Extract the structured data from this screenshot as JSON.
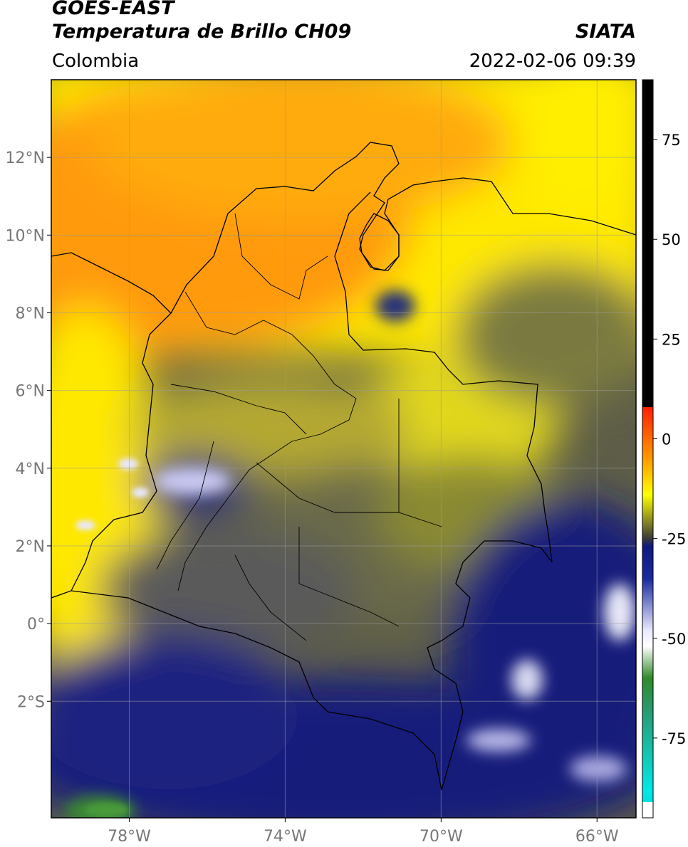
{
  "header": {
    "satellite": "GOES-EAST",
    "product": "Temperatura de Brillo CH09",
    "source": "SIATA",
    "region": "Colombia",
    "datetime": "2022-02-06 09:39"
  },
  "map": {
    "extent": {
      "lon": [
        -80,
        -65
      ],
      "lat": [
        -5,
        14
      ]
    },
    "lon_ticks": [
      {
        "value": -78,
        "label": "78°W"
      },
      {
        "value": -74,
        "label": "74°W"
      },
      {
        "value": -70,
        "label": "70°W"
      },
      {
        "value": -66,
        "label": "66°W"
      }
    ],
    "lat_ticks": [
      {
        "value": 12,
        "label": "12°N"
      },
      {
        "value": 10,
        "label": "10°N"
      },
      {
        "value": 8,
        "label": "8°N"
      },
      {
        "value": 6,
        "label": "6°N"
      },
      {
        "value": 4,
        "label": "4°N"
      },
      {
        "value": 2,
        "label": "2°N"
      },
      {
        "value": 0,
        "label": "0°"
      },
      {
        "value": -2,
        "label": "2°S"
      }
    ]
  },
  "colorbar": {
    "range": [
      -95,
      90
    ],
    "ticks": [
      {
        "value": 75,
        "label": "75"
      },
      {
        "value": 50,
        "label": "50"
      },
      {
        "value": 25,
        "label": "25"
      },
      {
        "value": 0,
        "label": "0"
      },
      {
        "value": -25,
        "label": "-25"
      },
      {
        "value": -50,
        "label": "-50"
      },
      {
        "value": -75,
        "label": "-75"
      }
    ],
    "stops": [
      {
        "value": 90,
        "color": "#000000"
      },
      {
        "value": 8,
        "color": "#000000"
      },
      {
        "value": 7.9,
        "color": "#ff2000"
      },
      {
        "value": -5,
        "color": "#ff9a00"
      },
      {
        "value": -14,
        "color": "#ffff00"
      },
      {
        "value": -25,
        "color": "#3a3a3a"
      },
      {
        "value": -27,
        "color": "#101880"
      },
      {
        "value": -35,
        "color": "#1a2aa0"
      },
      {
        "value": -48,
        "color": "#e8e8ff"
      },
      {
        "value": -52,
        "color": "#ffffff"
      },
      {
        "value": -60,
        "color": "#2f8a2a"
      },
      {
        "value": -68,
        "color": "#2a9a70"
      },
      {
        "value": -88,
        "color": "#00e8e8"
      },
      {
        "value": -91,
        "color": "#00e0e0"
      },
      {
        "value": -91.1,
        "color": "#ffffff"
      },
      {
        "value": -95,
        "color": "#ffffff"
      }
    ]
  },
  "colors": {
    "warm_orange": "#ff9a10",
    "yellow": "#ffee00",
    "olive": "#8a8a30",
    "gray": "#5a5a5a",
    "navy": "#141c7a",
    "cold_white": "#d8d8f0",
    "green": "#3a8a30",
    "tick_gray": "#777777"
  }
}
